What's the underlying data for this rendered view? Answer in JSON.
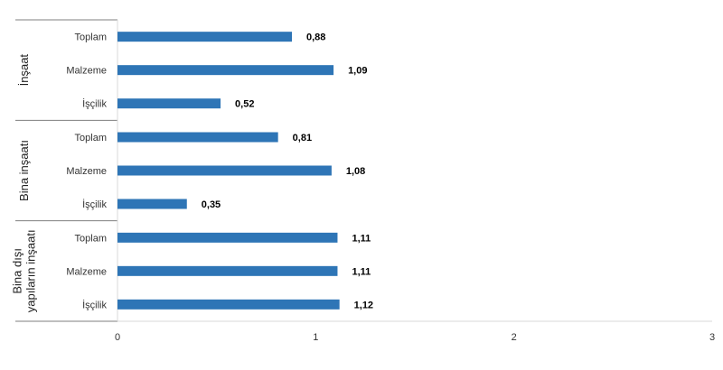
{
  "chart_data": {
    "type": "bar",
    "orientation": "horizontal",
    "groups": [
      {
        "label": "İnşaat",
        "categories": [
          "Toplam",
          "Malzeme",
          "İşçilik"
        ],
        "values": [
          0.88,
          1.09,
          0.52
        ],
        "value_labels": [
          "0,88",
          "1,09",
          "0,52"
        ]
      },
      {
        "label": "Bina inşaatı",
        "categories": [
          "Toplam",
          "Malzeme",
          "İşçilik"
        ],
        "values": [
          0.81,
          1.08,
          0.35
        ],
        "value_labels": [
          "0,81",
          "1,08",
          "0,35"
        ]
      },
      {
        "label_lines": [
          "Bina dışı",
          "yapıların inşaatı"
        ],
        "categories": [
          "Toplam",
          "Malzeme",
          "İşçilik"
        ],
        "values": [
          1.11,
          1.11,
          1.12
        ],
        "value_labels": [
          "1,11",
          "1,11",
          "1,12"
        ]
      }
    ],
    "xlim": [
      0,
      3
    ],
    "x_ticks": [
      0,
      1,
      2,
      3
    ],
    "x_tick_labels": [
      "0",
      "1",
      "2",
      "3"
    ],
    "grid": false,
    "legend": "none",
    "colors": {
      "bar": "#2e75b6",
      "axis": "#d9d9d9",
      "separator": "#7f7f7f"
    }
  }
}
